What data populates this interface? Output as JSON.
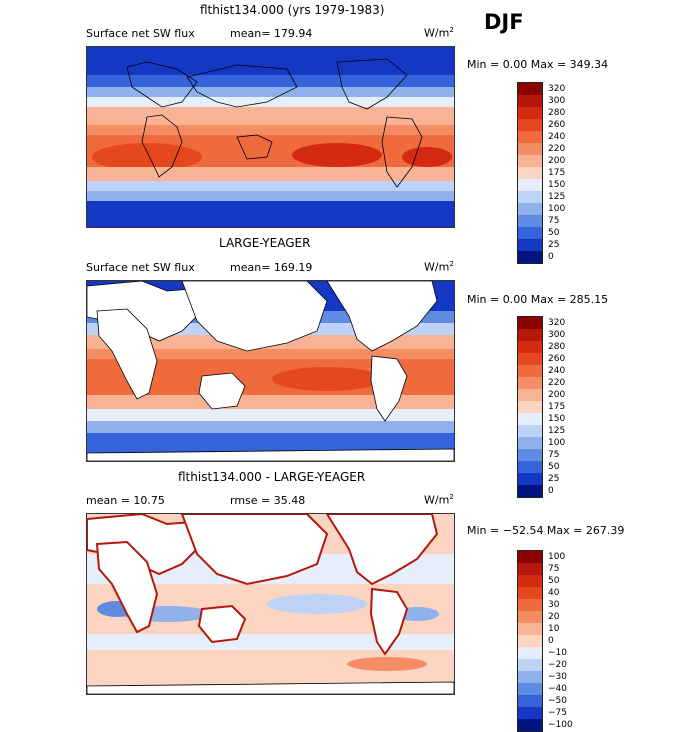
{
  "season": "DJF",
  "panels": [
    {
      "title": "flthist134.000 (yrs 1979-1983)",
      "left_label": "Surface net SW flux",
      "stat": "mean= 179.94",
      "stat2": "",
      "units": "W/m",
      "units_sup": "2",
      "range_text": "Min =    0.00 Max = 349.34",
      "levels": [
        "320",
        "300",
        "280",
        "260",
        "240",
        "220",
        "200",
        "175",
        "150",
        "125",
        "100",
        "75",
        "50",
        "25",
        "0"
      ],
      "colors": [
        "#8b0000",
        "#b5170a",
        "#d42a12",
        "#e5481f",
        "#ef6a3d",
        "#f48d63",
        "#f8b394",
        "#fbd5c2",
        "#e6eefc",
        "#bcd3f5",
        "#8fb1ec",
        "#5f8ce2",
        "#3563d9",
        "#1438c4",
        "#00157f"
      ],
      "land_masked": false
    },
    {
      "title": "LARGE-YEAGER",
      "left_label": "Surface net SW flux",
      "stat": "mean= 169.19",
      "stat2": "",
      "units": "W/m",
      "units_sup": "2",
      "range_text": "Min =    0.00 Max = 285.15",
      "levels": [
        "320",
        "300",
        "280",
        "260",
        "240",
        "220",
        "200",
        "175",
        "150",
        "125",
        "100",
        "75",
        "50",
        "25",
        "0"
      ],
      "colors": [
        "#8b0000",
        "#b5170a",
        "#d42a12",
        "#e5481f",
        "#ef6a3d",
        "#f48d63",
        "#f8b394",
        "#fbd5c2",
        "#e6eefc",
        "#bcd3f5",
        "#8fb1ec",
        "#5f8ce2",
        "#3563d9",
        "#1438c4",
        "#00157f"
      ],
      "land_masked": true
    },
    {
      "title": "flthist134.000 - LARGE-YEAGER",
      "left_label": "mean =   10.75",
      "stat": "rmse =   35.48",
      "stat2": "",
      "units": "W/m",
      "units_sup": "2",
      "range_text": "Min = −52.54  Max = 267.39",
      "levels": [
        "100",
        "75",
        "50",
        "40",
        "30",
        "20",
        "10",
        "0",
        "−10",
        "−20",
        "−30",
        "−40",
        "−50",
        "−75",
        "−100"
      ],
      "colors": [
        "#8b0000",
        "#b5170a",
        "#d42a12",
        "#e5481f",
        "#ef6a3d",
        "#f48d63",
        "#f8b394",
        "#fbd5c2",
        "#e6eefc",
        "#bcd3f5",
        "#8fb1ec",
        "#5f8ce2",
        "#3563d9",
        "#1438c4",
        "#00157f"
      ],
      "land_masked": true
    }
  ]
}
